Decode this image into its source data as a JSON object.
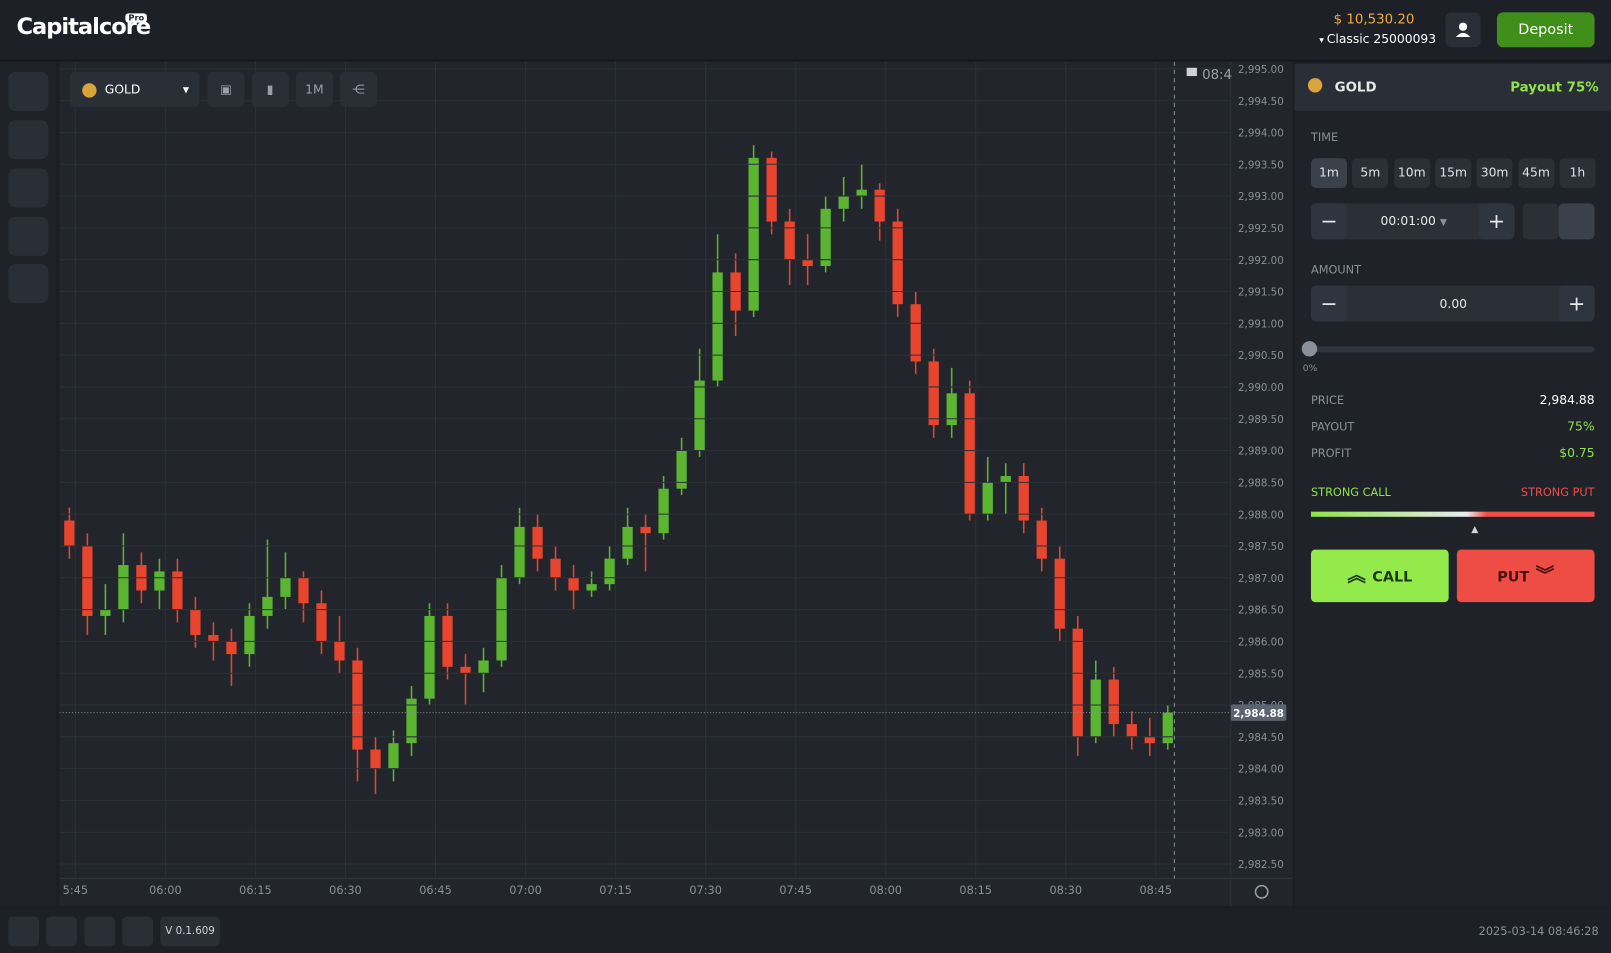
{
  "header": {
    "logo": "Capitalcore",
    "logo_badge": "Pro",
    "balance": "$ 10,530.20",
    "account": "Classic 25000093",
    "deposit": "Deposit"
  },
  "toolbar": {
    "asset": "GOLD",
    "timeframe": "1M"
  },
  "chart_data": {
    "type": "candlestick",
    "x": [
      "05:44",
      "05:47",
      "05:50",
      "05:53",
      "05:56",
      "05:59",
      "06:02",
      "06:05",
      "06:08",
      "06:11",
      "06:14",
      "06:17",
      "06:20",
      "06:23",
      "06:26",
      "06:29",
      "06:32",
      "06:35",
      "06:38",
      "06:41",
      "06:44",
      "06:47",
      "06:50",
      "06:53",
      "06:56",
      "06:59",
      "07:02",
      "07:05",
      "07:08",
      "07:11",
      "07:14",
      "07:17",
      "07:20",
      "07:23",
      "07:26",
      "07:29",
      "07:32",
      "07:35",
      "07:38",
      "07:41",
      "07:44",
      "07:47",
      "07:50",
      "07:53",
      "07:56",
      "07:59",
      "08:02",
      "08:05",
      "08:08",
      "08:11",
      "08:14",
      "08:17",
      "08:20",
      "08:23",
      "08:26",
      "08:29",
      "08:32",
      "08:35",
      "08:38",
      "08:41",
      "08:44",
      "08:47"
    ],
    "open": [
      2987.9,
      2987.5,
      2986.4,
      2986.5,
      2987.2,
      2986.8,
      2987.1,
      2986.5,
      2986.1,
      2986.0,
      2985.8,
      2986.4,
      2986.7,
      2987.0,
      2986.6,
      2986.0,
      2985.7,
      2984.3,
      2984.0,
      2984.4,
      2985.1,
      2986.4,
      2985.6,
      2985.5,
      2985.7,
      2987.0,
      2987.8,
      2987.3,
      2987.0,
      2986.8,
      2986.9,
      2987.3,
      2987.8,
      2987.7,
      2988.4,
      2989.0,
      2990.1,
      2991.8,
      2991.2,
      2993.6,
      2992.6,
      2992.0,
      2991.9,
      2992.8,
      2993.0,
      2993.1,
      2992.6,
      2991.3,
      2990.4,
      2989.4,
      2989.9,
      2988.0,
      2988.5,
      2988.6,
      2987.9,
      2987.3,
      2986.2,
      2984.5,
      2985.4,
      2984.7,
      2984.5,
      2984.4
    ],
    "high": [
      2988.1,
      2987.7,
      2986.9,
      2987.7,
      2987.4,
      2987.3,
      2987.3,
      2986.7,
      2986.3,
      2986.2,
      2986.6,
      2987.6,
      2987.4,
      2987.1,
      2986.8,
      2986.4,
      2985.9,
      2984.5,
      2984.6,
      2985.3,
      2986.6,
      2986.6,
      2985.8,
      2985.9,
      2987.2,
      2988.1,
      2988.0,
      2987.5,
      2987.2,
      2987.1,
      2987.5,
      2988.1,
      2988.0,
      2988.6,
      2989.2,
      2990.6,
      2992.4,
      2992.1,
      2993.8,
      2993.7,
      2992.8,
      2992.4,
      2993.0,
      2993.3,
      2993.5,
      2993.2,
      2992.8,
      2991.5,
      2990.6,
      2990.3,
      2990.1,
      2988.9,
      2988.8,
      2988.8,
      2988.1,
      2987.5,
      2986.4,
      2985.7,
      2985.6,
      2984.9,
      2984.8,
      2985.0
    ],
    "low": [
      2987.3,
      2986.1,
      2986.1,
      2986.3,
      2986.6,
      2986.5,
      2986.3,
      2985.9,
      2985.7,
      2985.3,
      2985.6,
      2986.2,
      2986.5,
      2986.3,
      2985.8,
      2985.5,
      2983.8,
      2983.6,
      2983.8,
      2984.2,
      2985.0,
      2985.4,
      2985.0,
      2985.2,
      2985.6,
      2986.9,
      2987.1,
      2986.8,
      2986.5,
      2986.7,
      2986.8,
      2987.2,
      2987.1,
      2987.6,
      2988.3,
      2988.9,
      2990.0,
      2990.8,
      2991.1,
      2992.4,
      2991.6,
      2991.6,
      2991.8,
      2992.6,
      2992.8,
      2992.3,
      2991.1,
      2990.2,
      2989.2,
      2989.2,
      2987.9,
      2987.9,
      2988.0,
      2987.7,
      2987.1,
      2986.0,
      2984.2,
      2984.4,
      2984.5,
      2984.3,
      2984.2,
      2984.3
    ],
    "close": [
      2987.5,
      2986.4,
      2986.5,
      2987.2,
      2986.8,
      2987.1,
      2986.5,
      2986.1,
      2986.0,
      2985.8,
      2986.4,
      2986.7,
      2987.0,
      2986.6,
      2986.0,
      2985.7,
      2984.3,
      2984.0,
      2984.4,
      2985.1,
      2986.4,
      2985.6,
      2985.5,
      2985.7,
      2987.0,
      2987.8,
      2987.3,
      2987.0,
      2986.8,
      2986.9,
      2987.3,
      2987.8,
      2987.7,
      2988.4,
      2989.0,
      2990.1,
      2991.8,
      2991.2,
      2993.6,
      2992.6,
      2992.0,
      2991.9,
      2992.8,
      2993.0,
      2993.1,
      2992.6,
      2991.3,
      2990.4,
      2989.4,
      2989.9,
      2988.0,
      2988.5,
      2988.6,
      2987.9,
      2987.3,
      2986.2,
      2984.5,
      2985.4,
      2984.7,
      2984.5,
      2984.4,
      2984.88
    ],
    "up_color": "#5cb531",
    "down_color": "#e8452f",
    "ylim": [
      2982.5,
      2995.0
    ],
    "yticks": [
      {
        "value": 2982.5,
        "label": "2,982.50"
      },
      {
        "value": 2983.0,
        "label": "2,983.00"
      },
      {
        "value": 2983.5,
        "label": "2,983.50"
      },
      {
        "value": 2984.0,
        "label": "2,984.00"
      },
      {
        "value": 2984.5,
        "label": "2,984.50"
      },
      {
        "value": 2985.0,
        "label": "2,985.00"
      },
      {
        "value": 2985.5,
        "label": "2,985.50"
      },
      {
        "value": 2986.0,
        "label": "2,986.00"
      },
      {
        "value": 2986.5,
        "label": "2,986.50"
      },
      {
        "value": 2987.0,
        "label": "2,987.00"
      },
      {
        "value": 2987.5,
        "label": "2,987.50"
      },
      {
        "value": 2988.0,
        "label": "2,988.00"
      },
      {
        "value": 2988.5,
        "label": "2,988.50"
      },
      {
        "value": 2989.0,
        "label": "2,989.00"
      },
      {
        "value": 2989.5,
        "label": "2,989.50"
      },
      {
        "value": 2990.0,
        "label": "2,990.00"
      },
      {
        "value": 2990.5,
        "label": "2,990.50"
      },
      {
        "value": 2991.0,
        "label": "2,991.00"
      },
      {
        "value": 2991.5,
        "label": "2,991.50"
      },
      {
        "value": 2992.0,
        "label": "2,992.00"
      },
      {
        "value": 2992.5,
        "label": "2,992.50"
      },
      {
        "value": 2993.0,
        "label": "2,993.00"
      },
      {
        "value": 2993.5,
        "label": "2,993.50"
      },
      {
        "value": 2994.0,
        "label": "2,994.00"
      },
      {
        "value": 2994.5,
        "label": "2,994.50"
      },
      {
        "value": 2995.0,
        "label": "2,995.00"
      }
    ],
    "xticks": [
      "5:45",
      "06:00",
      "06:15",
      "06:30",
      "06:45",
      "07:00",
      "07:15",
      "07:30",
      "07:45",
      "08:00",
      "08:15",
      "08:30",
      "08:45"
    ],
    "current_price": {
      "value": 2984.88,
      "label": "2,984.88"
    },
    "marker_label": "08:4",
    "grid": true
  },
  "panel": {
    "asset": "GOLD",
    "payout_badge": "Payout 75%",
    "time_label": "TIME",
    "durations": [
      "1m",
      "5m",
      "10m",
      "15m",
      "30m",
      "45m",
      "1h"
    ],
    "duration": "00:01:00",
    "amount_label": "AMOUNT",
    "amount": "0.00",
    "slider_label": "0%",
    "rows": [
      [
        "PRICE",
        "2,984.88"
      ],
      [
        "PAYOUT",
        "75%"
      ],
      [
        "PROFIT",
        "$0.75"
      ]
    ],
    "strong_call": "STRONG CALL",
    "strong_put": "STRONG PUT",
    "call": "CALL",
    "put": "PUT"
  },
  "footer": {
    "version": "V 0.1.609",
    "datetime": "2025-03-14 08:46:28"
  }
}
